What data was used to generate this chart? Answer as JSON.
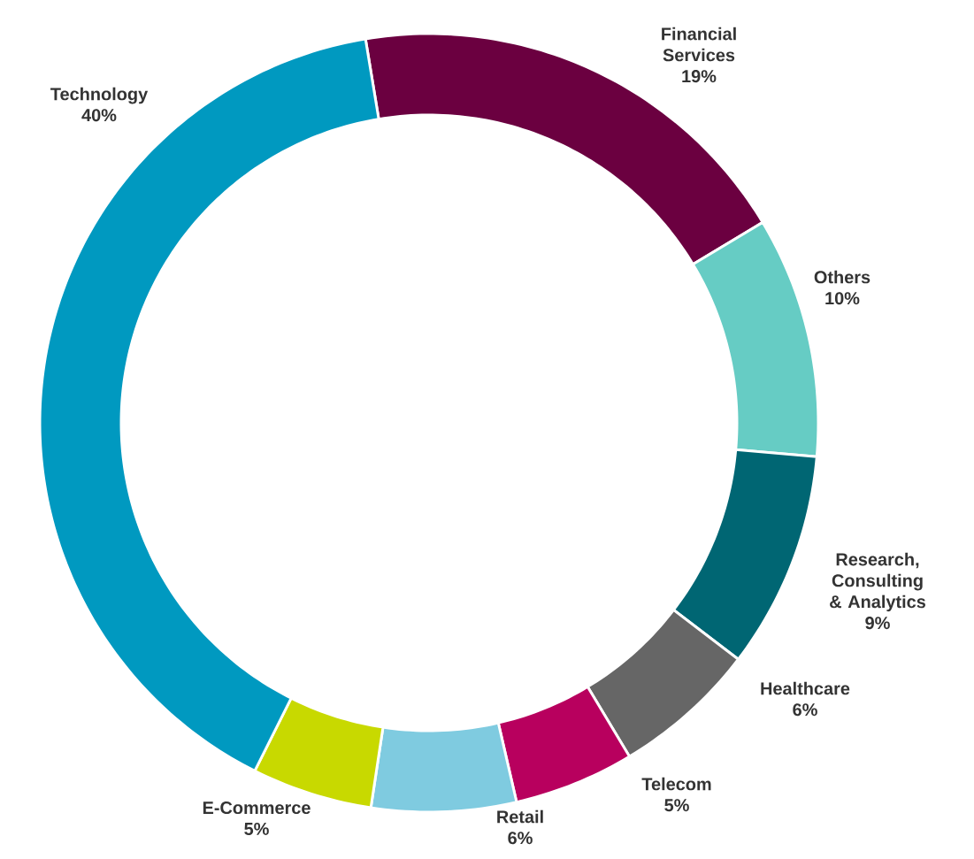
{
  "chart_data": {
    "type": "donut",
    "categories": [
      "Financial Services",
      "Others",
      "Research, Consulting & Analytics",
      "Healthcare",
      "Telecom",
      "Retail",
      "E-Commerce",
      "Technology"
    ],
    "values": [
      19,
      10,
      9,
      6,
      5,
      6,
      5,
      40
    ],
    "colors": [
      "#6b0040",
      "#66ccc4",
      "#006673",
      "#666666",
      "#b8005e",
      "#7fcbe0",
      "#c8d900",
      "#0099c0"
    ],
    "value_labels": [
      "19%",
      "10%",
      "9%",
      "6%",
      "5%",
      "6%",
      "5%",
      "40%"
    ]
  }
}
